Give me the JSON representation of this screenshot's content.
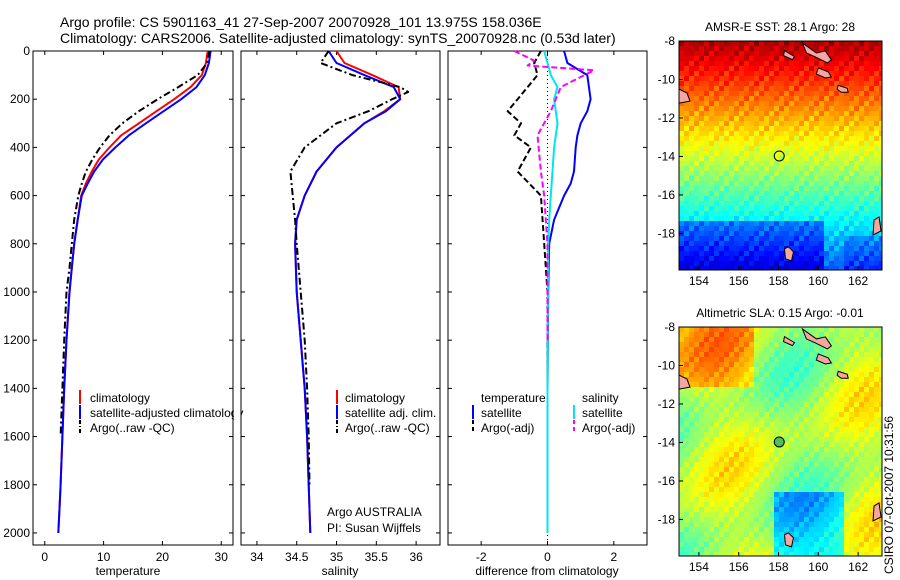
{
  "header": {
    "line1": "Argo profile: CS 5901163_41 27-Sep-2007 20070928_101 13.975S 158.036E",
    "line2": "Climatology: CARS2006. Satellite-adjusted climatology: synTS_20070928.nc (0.53d later)"
  },
  "footer": {
    "credit": "CSIRO 07-Oct-2007 10:31:56",
    "argo_org": "Argo AUSTRALIA",
    "pi": "PI: Susan Wijffels"
  },
  "colors": {
    "climatology": "#ff0000",
    "satellite": "#0000ff",
    "argo": "#000000",
    "salinity_satellite": "#00e5ee",
    "salinity_argo": "#ff00ff"
  },
  "chart_data": [
    {
      "type": "line",
      "id": "temperature",
      "xlabel": "temperature",
      "xlim": [
        -2,
        32
      ],
      "xticks": [
        0,
        10,
        20,
        30
      ],
      "ylim": [
        0,
        2050
      ],
      "yticks": [
        0,
        200,
        400,
        600,
        800,
        1000,
        1200,
        1400,
        1600,
        1800,
        2000
      ],
      "y_reversed": true,
      "legend": [
        "climatology",
        "satellite-adjusted climatology",
        "Argo(..raw -QC)"
      ],
      "series": [
        {
          "name": "climatology",
          "style": "solid",
          "color": "#ff0000",
          "x": [
            27.7,
            27.4,
            26.7,
            24.8,
            22.0,
            19.0,
            16.0,
            13.0,
            11.0,
            9.2,
            8.0,
            7.0,
            6.2,
            5.6,
            5.0,
            4.6,
            4.2,
            3.7,
            3.3,
            3.0,
            2.7,
            2.5,
            2.3
          ],
          "y": [
            0,
            50,
            100,
            150,
            200,
            250,
            300,
            350,
            400,
            450,
            500,
            550,
            600,
            700,
            800,
            900,
            1000,
            1200,
            1400,
            1600,
            1800,
            1900,
            2000
          ]
        },
        {
          "name": "satellite-adjusted climatology",
          "style": "solid",
          "color": "#0000ff",
          "x": [
            28.2,
            27.9,
            27.2,
            25.8,
            23.2,
            20.2,
            17.2,
            14.3,
            12.0,
            9.9,
            8.4,
            7.3,
            6.3,
            5.6,
            5.0,
            4.6,
            4.2,
            3.7,
            3.3,
            3.0,
            2.7,
            2.5,
            2.3
          ],
          "y": [
            0,
            50,
            100,
            150,
            200,
            250,
            300,
            350,
            400,
            450,
            500,
            550,
            600,
            700,
            800,
            900,
            1000,
            1200,
            1400,
            1600,
            1800,
            1900,
            2000
          ]
        },
        {
          "name": "Argo(..raw -QC)",
          "style": "dashdot",
          "color": "#000000",
          "x": [
            28.0,
            27.6,
            26.0,
            22.7,
            19.2,
            16.0,
            13.2,
            11.0,
            9.4,
            8.1,
            7.0,
            6.3,
            5.7,
            5.0,
            4.6,
            4.2,
            3.7,
            3.3,
            3.0,
            2.7
          ],
          "y": [
            0,
            50,
            100,
            150,
            200,
            250,
            300,
            350,
            400,
            450,
            500,
            550,
            600,
            700,
            800,
            900,
            1000,
            1200,
            1400,
            1600
          ]
        }
      ]
    },
    {
      "type": "line",
      "id": "salinity",
      "xlabel": "salinity",
      "xlim": [
        33.8,
        36.3
      ],
      "xticks": [
        34,
        34.5,
        35,
        35.5,
        36
      ],
      "ylim": [
        0,
        2050
      ],
      "y_reversed": true,
      "legend": [
        "climatology",
        "satellite adj. clim.",
        "Argo(..raw -QC)"
      ],
      "series": [
        {
          "name": "climatology",
          "style": "solid",
          "color": "#ff0000",
          "x": [
            35.0,
            35.1,
            35.45,
            35.78,
            35.8,
            35.6,
            35.35,
            35.0,
            34.75,
            34.6,
            34.5,
            34.48,
            34.5,
            34.55,
            34.6,
            34.63,
            34.65,
            34.66,
            34.67
          ],
          "y": [
            0,
            50,
            100,
            150,
            200,
            250,
            300,
            400,
            500,
            600,
            700,
            800,
            1000,
            1200,
            1400,
            1600,
            1800,
            1900,
            2000
          ]
        },
        {
          "name": "satellite adj. clim.",
          "style": "solid",
          "color": "#0000ff",
          "x": [
            34.9,
            35.0,
            35.35,
            35.72,
            35.8,
            35.62,
            35.35,
            35.0,
            34.75,
            34.6,
            34.5,
            34.48,
            34.5,
            34.55,
            34.6,
            34.63,
            34.65,
            34.66,
            34.67
          ],
          "y": [
            0,
            50,
            100,
            150,
            200,
            250,
            300,
            400,
            500,
            600,
            700,
            800,
            1000,
            1200,
            1400,
            1600,
            1800,
            1900,
            2000
          ]
        },
        {
          "name": "Argo(..raw -QC)",
          "style": "dashdot",
          "color": "#000000",
          "x": [
            34.9,
            34.8,
            35.2,
            35.8,
            35.9,
            35.7,
            35.4,
            35.0,
            34.6,
            34.42,
            34.45,
            34.48,
            34.5,
            34.55,
            34.6,
            34.63,
            34.65,
            34.66
          ],
          "y": [
            0,
            50,
            100,
            150,
            170,
            200,
            250,
            300,
            400,
            500,
            600,
            700,
            800,
            1000,
            1200,
            1400,
            1600,
            1800
          ]
        }
      ]
    },
    {
      "type": "line",
      "id": "difference",
      "xlabel": "difference from climatology",
      "xlim": [
        -3,
        3
      ],
      "xticks": [
        -2,
        0,
        2
      ],
      "ylim": [
        0,
        2050
      ],
      "y_reversed": true,
      "legend_titles": [
        "temperature",
        "salinity"
      ],
      "legend": [
        "satellite",
        "Argo(-adj)",
        "satellite",
        "Argo(-adj)"
      ],
      "series": [
        {
          "name": "temperature satellite",
          "style": "solid",
          "color": "#0000ff",
          "x": [
            0.5,
            0.6,
            1.2,
            1.3,
            1.2,
            1.0,
            0.9,
            0.85,
            0.8,
            0.7,
            0.5,
            0.2,
            0.05,
            0.02,
            0.0,
            0.0,
            0.0,
            0.0
          ],
          "y": [
            0,
            50,
            100,
            200,
            250,
            300,
            350,
            400,
            500,
            550,
            600,
            700,
            800,
            1000,
            1400,
            1800,
            1900,
            2000
          ]
        },
        {
          "name": "temperature Argo(-adj)",
          "style": "dashed",
          "color": "#000000",
          "x": [
            -0.2,
            -0.4,
            -0.3,
            -0.6,
            -1.2,
            -0.8,
            -1.0,
            -0.5,
            -0.9,
            -0.2,
            -0.1,
            0.0,
            0.0,
            0.0,
            0.0
          ],
          "y": [
            0,
            50,
            100,
            150,
            250,
            300,
            350,
            400,
            500,
            600,
            800,
            1000,
            1400,
            1800,
            2000
          ]
        },
        {
          "name": "salinity satellite",
          "style": "solid",
          "color": "#00e5ee",
          "x": [
            -0.1,
            0.0,
            0.1,
            0.3,
            0.2,
            0.3,
            0.2,
            0.15,
            0.1,
            0.05,
            0.02,
            0.0,
            0.0
          ],
          "y": [
            0,
            50,
            100,
            150,
            200,
            300,
            400,
            500,
            600,
            700,
            800,
            1400,
            2000
          ]
        },
        {
          "name": "salinity Argo(-adj)",
          "style": "dashed",
          "color": "#ff00ff",
          "x": [
            -1.0,
            -0.4,
            -0.6,
            1.4,
            0.4,
            0.1,
            -0.3,
            -0.2,
            -0.1,
            -0.05,
            0.0,
            0.0
          ],
          "y": [
            0,
            40,
            60,
            80,
            150,
            250,
            350,
            500,
            600,
            700,
            800,
            1200
          ]
        }
      ]
    },
    {
      "type": "heatmap",
      "id": "sst",
      "title": "AMSR-E SST: 28.1  Argo: 28",
      "xlim": [
        153,
        163.2
      ],
      "ylim": [
        -19.9,
        -8
      ],
      "xticks": [
        154,
        156,
        158,
        160,
        162
      ],
      "yticks": [
        -8,
        -10,
        -12,
        -14,
        -16,
        -18
      ],
      "argo_marker": {
        "lon": 158.036,
        "lat": -13.975
      }
    },
    {
      "type": "heatmap",
      "id": "sla",
      "title": "Altimetric SLA: 0.15  Argo: -0.01",
      "xlim": [
        153,
        163.2
      ],
      "ylim": [
        -19.9,
        -8
      ],
      "xticks": [
        154,
        156,
        158,
        160,
        162
      ],
      "yticks": [
        -8,
        -10,
        -12,
        -14,
        -16,
        -18
      ],
      "argo_marker": {
        "lon": 158.036,
        "lat": -13.975
      }
    }
  ]
}
